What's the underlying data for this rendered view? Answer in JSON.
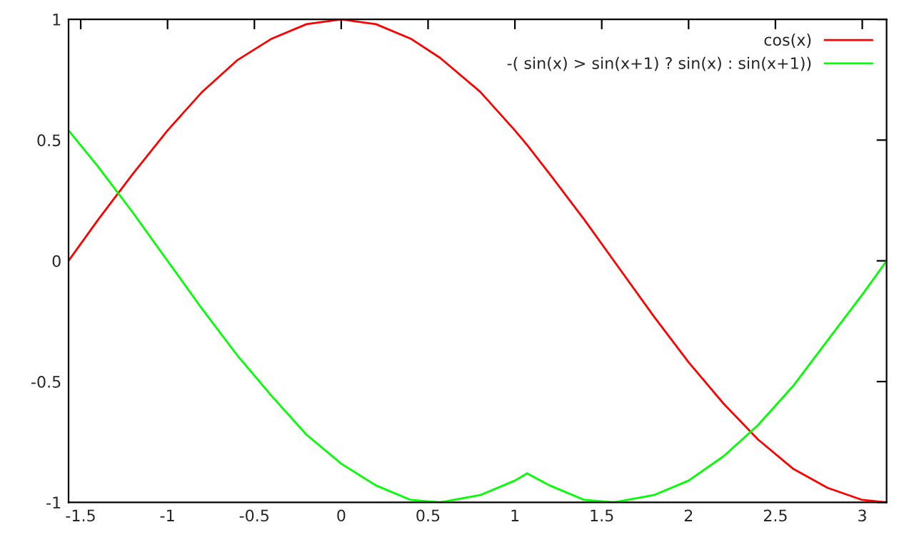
{
  "chart_data": {
    "type": "line",
    "x": [
      -1.57,
      -1.4,
      -1.2,
      -1.0,
      -0.8,
      -0.6,
      -0.4,
      -0.2,
      0,
      0.2,
      0.4,
      0.57,
      0.8,
      1.0,
      1.07,
      1.2,
      1.4,
      1.57,
      1.8,
      2.0,
      2.2,
      2.4,
      2.6,
      2.8,
      3.0,
      3.14
    ],
    "series": [
      {
        "name": "cos(x)",
        "color": "#ff0000",
        "values": [
          0.0,
          0.17,
          0.36,
          0.54,
          0.7,
          0.83,
          0.92,
          0.98,
          1.0,
          0.98,
          0.92,
          0.84,
          0.7,
          0.54,
          0.48,
          0.36,
          0.17,
          0.0,
          -0.23,
          -0.42,
          -0.59,
          -0.74,
          -0.86,
          -0.94,
          -0.99,
          -1.0
        ]
      },
      {
        "name": "-( sin(x) > sin(x+1) ? sin(x) : sin(x+1))",
        "color": "#00ff00",
        "values": [
          0.54,
          0.39,
          0.2,
          0.0,
          -0.2,
          -0.39,
          -0.56,
          -0.72,
          -0.84,
          -0.93,
          -0.99,
          -1.0,
          -0.97,
          -0.91,
          -0.88,
          -0.93,
          -0.99,
          -1.0,
          -0.97,
          -0.91,
          -0.81,
          -0.68,
          -0.52,
          -0.33,
          -0.14,
          0.0
        ]
      }
    ],
    "xlim": [
      -1.57,
      3.14
    ],
    "ylim": [
      -1,
      1
    ],
    "xticks": [
      {
        "value": -1.5,
        "label": "-1.5"
      },
      {
        "value": -1,
        "label": "-1"
      },
      {
        "value": -0.5,
        "label": "-0.5"
      },
      0,
      0.5,
      1,
      1.5,
      2,
      2.5,
      3
    ],
    "yticks": [
      {
        "value": -1,
        "label": "-1"
      },
      {
        "value": -0.5,
        "label": "-0.5"
      },
      0,
      0.5,
      1
    ],
    "legend": "top right",
    "grid": false,
    "marker": "none",
    "line_style": "solid"
  }
}
